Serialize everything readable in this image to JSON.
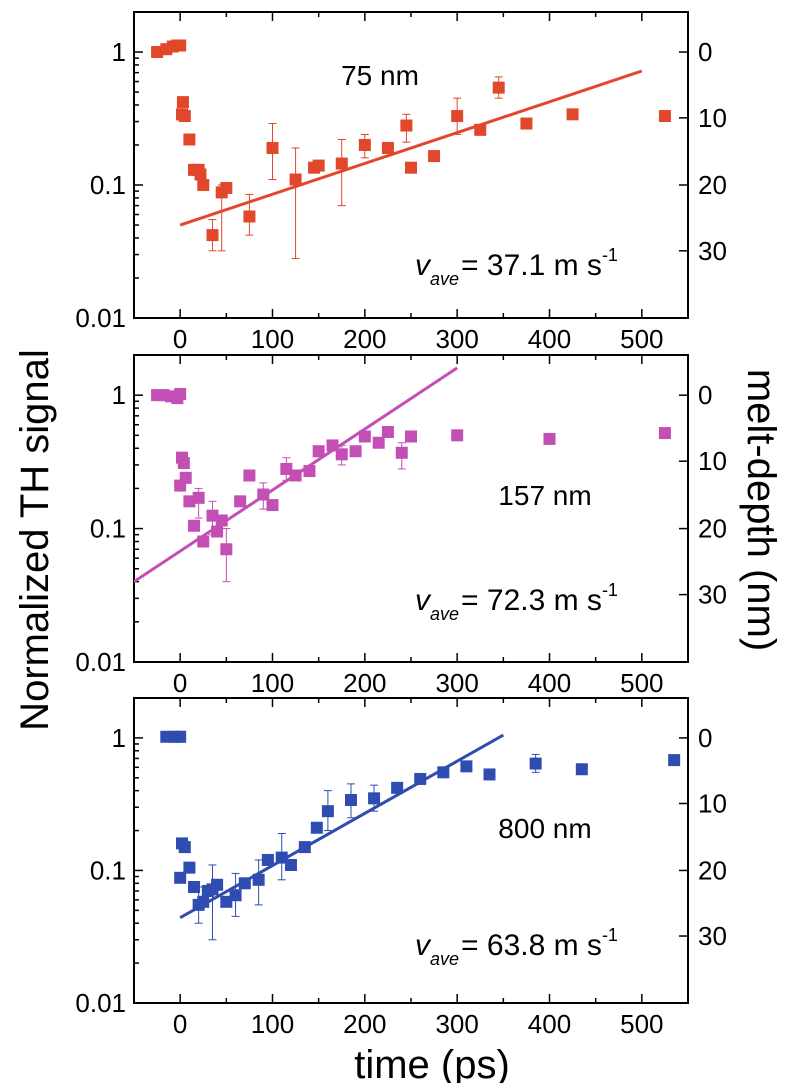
{
  "figure": {
    "ylabel_left": "Normalized TH signal",
    "ylabel_right": "melt-depth (nm)",
    "xlabel": "time (ps)"
  },
  "chart_data": [
    {
      "type": "scatter",
      "label": "75 nm",
      "color": "#e0472b",
      "xlim": [
        -50,
        550
      ],
      "ylim": [
        0.01,
        2
      ],
      "yscale": "log",
      "xticks": [
        0,
        100,
        200,
        300,
        400,
        500
      ],
      "yticks": [
        0.01,
        0.1,
        1
      ],
      "ytick_labels": [
        "0.01",
        "0.1",
        "1"
      ],
      "right_ticks": [
        0,
        10,
        20,
        30
      ],
      "right_tick_y": [
        1,
        0.32,
        0.1,
        0.032
      ],
      "annotation": {
        "v": "v",
        "sub": "ave",
        "text": "= 37.1 m s",
        "sup": "-1"
      },
      "points": [
        {
          "x": -25,
          "y": 1.0
        },
        {
          "x": -15,
          "y": 1.05
        },
        {
          "x": -8,
          "y": 1.1
        },
        {
          "x": -3,
          "y": 1.12
        },
        {
          "x": 0,
          "y": 1.12
        },
        {
          "x": 2,
          "y": 0.34
        },
        {
          "x": 3,
          "y": 0.42
        },
        {
          "x": 5,
          "y": 0.33
        },
        {
          "x": 10,
          "y": 0.22
        },
        {
          "x": 15,
          "y": 0.13
        },
        {
          "x": 20,
          "y": 0.13
        },
        {
          "x": 22,
          "y": 0.12
        },
        {
          "x": 25,
          "y": 0.1
        },
        {
          "x": 35,
          "y": 0.042
        },
        {
          "x": 45,
          "y": 0.088
        },
        {
          "x": 50,
          "y": 0.095
        },
        {
          "x": 75,
          "y": 0.058
        },
        {
          "x": 100,
          "y": 0.19
        },
        {
          "x": 125,
          "y": 0.11
        },
        {
          "x": 145,
          "y": 0.135
        },
        {
          "x": 150,
          "y": 0.14
        },
        {
          "x": 175,
          "y": 0.145
        },
        {
          "x": 200,
          "y": 0.2
        },
        {
          "x": 225,
          "y": 0.19
        },
        {
          "x": 245,
          "y": 0.28
        },
        {
          "x": 250,
          "y": 0.135
        },
        {
          "x": 275,
          "y": 0.165
        },
        {
          "x": 300,
          "y": 0.33
        },
        {
          "x": 325,
          "y": 0.26
        },
        {
          "x": 345,
          "y": 0.54
        },
        {
          "x": 375,
          "y": 0.29
        },
        {
          "x": 425,
          "y": 0.34
        },
        {
          "x": 525,
          "y": 0.33
        }
      ],
      "error_bars": [
        {
          "x": 35,
          "lo": 0.032,
          "hi": 0.055
        },
        {
          "x": 45,
          "lo": 0.032,
          "hi": 0.1
        },
        {
          "x": 75,
          "lo": 0.042,
          "hi": 0.085
        },
        {
          "x": 100,
          "lo": 0.11,
          "hi": 0.29
        },
        {
          "x": 125,
          "lo": 0.028,
          "hi": 0.19
        },
        {
          "x": 175,
          "lo": 0.07,
          "hi": 0.22
        },
        {
          "x": 200,
          "lo": 0.16,
          "hi": 0.24
        },
        {
          "x": 245,
          "lo": 0.21,
          "hi": 0.34
        },
        {
          "x": 300,
          "lo": 0.24,
          "hi": 0.45
        },
        {
          "x": 345,
          "lo": 0.45,
          "hi": 0.65
        }
      ],
      "fit": {
        "x": [
          0,
          500
        ],
        "y": [
          0.05,
          0.72
        ]
      }
    },
    {
      "type": "scatter",
      "label": "157 nm",
      "color": "#c44fb4",
      "xlim": [
        -50,
        550
      ],
      "ylim": [
        0.01,
        2
      ],
      "yscale": "log",
      "xticks": [
        0,
        100,
        200,
        300,
        400,
        500
      ],
      "yticks": [
        0.01,
        0.1,
        1
      ],
      "ytick_labels": [
        "0.01",
        "0.1",
        "1"
      ],
      "right_ticks": [
        0,
        10,
        20,
        30
      ],
      "right_tick_y": [
        1,
        0.32,
        0.1,
        0.032
      ],
      "annotation": {
        "v": "v",
        "sub": "ave",
        "text": "= 72.3 m s",
        "sup": "-1"
      },
      "points": [
        {
          "x": -25,
          "y": 1.0
        },
        {
          "x": -18,
          "y": 1.0
        },
        {
          "x": -10,
          "y": 0.98
        },
        {
          "x": -3,
          "y": 0.95
        },
        {
          "x": 0,
          "y": 1.02
        },
        {
          "x": 0,
          "y": 0.21
        },
        {
          "x": 2,
          "y": 0.34
        },
        {
          "x": 4,
          "y": 0.31
        },
        {
          "x": 6,
          "y": 0.24
        },
        {
          "x": 10,
          "y": 0.16
        },
        {
          "x": 15,
          "y": 0.105
        },
        {
          "x": 20,
          "y": 0.17
        },
        {
          "x": 25,
          "y": 0.08
        },
        {
          "x": 35,
          "y": 0.125
        },
        {
          "x": 40,
          "y": 0.095
        },
        {
          "x": 45,
          "y": 0.115
        },
        {
          "x": 50,
          "y": 0.07
        },
        {
          "x": 65,
          "y": 0.16
        },
        {
          "x": 75,
          "y": 0.25
        },
        {
          "x": 90,
          "y": 0.18
        },
        {
          "x": 100,
          "y": 0.15
        },
        {
          "x": 115,
          "y": 0.28
        },
        {
          "x": 125,
          "y": 0.25
        },
        {
          "x": 140,
          "y": 0.27
        },
        {
          "x": 150,
          "y": 0.38
        },
        {
          "x": 165,
          "y": 0.42
        },
        {
          "x": 175,
          "y": 0.36
        },
        {
          "x": 190,
          "y": 0.38
        },
        {
          "x": 200,
          "y": 0.49
        },
        {
          "x": 215,
          "y": 0.44
        },
        {
          "x": 225,
          "y": 0.53
        },
        {
          "x": 240,
          "y": 0.37
        },
        {
          "x": 250,
          "y": 0.49
        },
        {
          "x": 300,
          "y": 0.5
        },
        {
          "x": 400,
          "y": 0.47
        },
        {
          "x": 525,
          "y": 0.52
        }
      ],
      "error_bars": [
        {
          "x": 20,
          "lo": 0.12,
          "hi": 0.2
        },
        {
          "x": 35,
          "lo": 0.09,
          "hi": 0.16
        },
        {
          "x": 50,
          "lo": 0.04,
          "hi": 0.1
        },
        {
          "x": 90,
          "lo": 0.14,
          "hi": 0.22
        },
        {
          "x": 115,
          "lo": 0.23,
          "hi": 0.34
        },
        {
          "x": 175,
          "lo": 0.3,
          "hi": 0.42
        },
        {
          "x": 240,
          "lo": 0.28,
          "hi": 0.44
        }
      ],
      "fit": {
        "x": [
          -50,
          300
        ],
        "y": [
          0.04,
          1.6
        ]
      }
    },
    {
      "type": "scatter",
      "label": "800 nm",
      "color": "#2f4db0",
      "xlim": [
        -50,
        550
      ],
      "ylim": [
        0.01,
        2
      ],
      "yscale": "log",
      "xticks": [
        0,
        100,
        200,
        300,
        400,
        500
      ],
      "yticks": [
        0.01,
        0.1,
        1
      ],
      "ytick_labels": [
        "0.01",
        "0.1",
        "1"
      ],
      "right_ticks": [
        0,
        10,
        20,
        30
      ],
      "right_tick_y": [
        1,
        0.32,
        0.1,
        0.032
      ],
      "annotation": {
        "v": "v",
        "sub": "ave",
        "text": "= 63.8 m s",
        "sup": "-1"
      },
      "points": [
        {
          "x": -15,
          "y": 1.02
        },
        {
          "x": -5,
          "y": 1.02
        },
        {
          "x": 0,
          "y": 1.02
        },
        {
          "x": 0,
          "y": 0.088
        },
        {
          "x": 2,
          "y": 0.16
        },
        {
          "x": 5,
          "y": 0.15
        },
        {
          "x": 10,
          "y": 0.105
        },
        {
          "x": 15,
          "y": 0.075
        },
        {
          "x": 20,
          "y": 0.055
        },
        {
          "x": 25,
          "y": 0.058
        },
        {
          "x": 30,
          "y": 0.07
        },
        {
          "x": 35,
          "y": 0.072
        },
        {
          "x": 40,
          "y": 0.078
        },
        {
          "x": 50,
          "y": 0.058
        },
        {
          "x": 60,
          "y": 0.065
        },
        {
          "x": 70,
          "y": 0.08
        },
        {
          "x": 85,
          "y": 0.085
        },
        {
          "x": 95,
          "y": 0.12
        },
        {
          "x": 110,
          "y": 0.125
        },
        {
          "x": 120,
          "y": 0.11
        },
        {
          "x": 135,
          "y": 0.15
        },
        {
          "x": 148,
          "y": 0.21
        },
        {
          "x": 160,
          "y": 0.28
        },
        {
          "x": 185,
          "y": 0.34
        },
        {
          "x": 210,
          "y": 0.35
        },
        {
          "x": 235,
          "y": 0.42
        },
        {
          "x": 260,
          "y": 0.49
        },
        {
          "x": 285,
          "y": 0.55
        },
        {
          "x": 310,
          "y": 0.61
        },
        {
          "x": 335,
          "y": 0.53
        },
        {
          "x": 385,
          "y": 0.64
        },
        {
          "x": 435,
          "y": 0.58
        },
        {
          "x": 535,
          "y": 0.68
        }
      ],
      "error_bars": [
        {
          "x": 20,
          "lo": 0.04,
          "hi": 0.075
        },
        {
          "x": 35,
          "lo": 0.03,
          "hi": 0.11
        },
        {
          "x": 60,
          "lo": 0.045,
          "hi": 0.095
        },
        {
          "x": 85,
          "lo": 0.055,
          "hi": 0.12
        },
        {
          "x": 110,
          "lo": 0.085,
          "hi": 0.19
        },
        {
          "x": 160,
          "lo": 0.2,
          "hi": 0.4
        },
        {
          "x": 185,
          "lo": 0.25,
          "hi": 0.45
        },
        {
          "x": 210,
          "lo": 0.28,
          "hi": 0.44
        },
        {
          "x": 385,
          "lo": 0.55,
          "hi": 0.75
        }
      ],
      "fit": {
        "x": [
          0,
          350
        ],
        "y": [
          0.044,
          1.05
        ]
      }
    }
  ]
}
